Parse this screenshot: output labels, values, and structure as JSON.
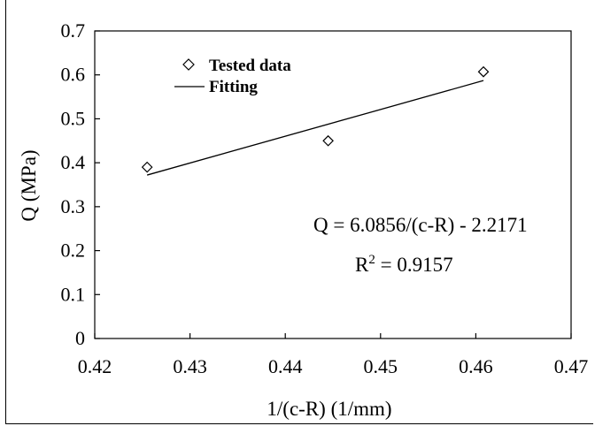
{
  "chart_data": {
    "type": "scatter",
    "xlabel": "1/(c-R) (1/mm)",
    "ylabel": "Q (MPa)",
    "xlim": [
      0.42,
      0.47
    ],
    "ylim": [
      0,
      0.7
    ],
    "xticks": [
      "0.42",
      "0.43",
      "0.44",
      "0.45",
      "0.46",
      "0.47"
    ],
    "yticks": [
      "0",
      "0.1",
      "0.2",
      "0.3",
      "0.4",
      "0.5",
      "0.6",
      "0.7"
    ],
    "grid": false,
    "legend_position": "top-left",
    "series": [
      {
        "name": "Tested data",
        "marker": "diamond",
        "x": [
          0.4255,
          0.4445,
          0.4608
        ],
        "y": [
          0.39,
          0.45,
          0.607
        ]
      },
      {
        "name": "Fitting",
        "style": "line",
        "x": [
          0.4255,
          0.4608
        ],
        "y": [
          0.372,
          0.587
        ]
      }
    ],
    "annotations": {
      "equation": "Q = 6.0856/(c-R) - 2.2171",
      "r_squared_prefix": "R",
      "r_squared_exponent": "2",
      "r_squared_value": " = 0.9157"
    }
  }
}
